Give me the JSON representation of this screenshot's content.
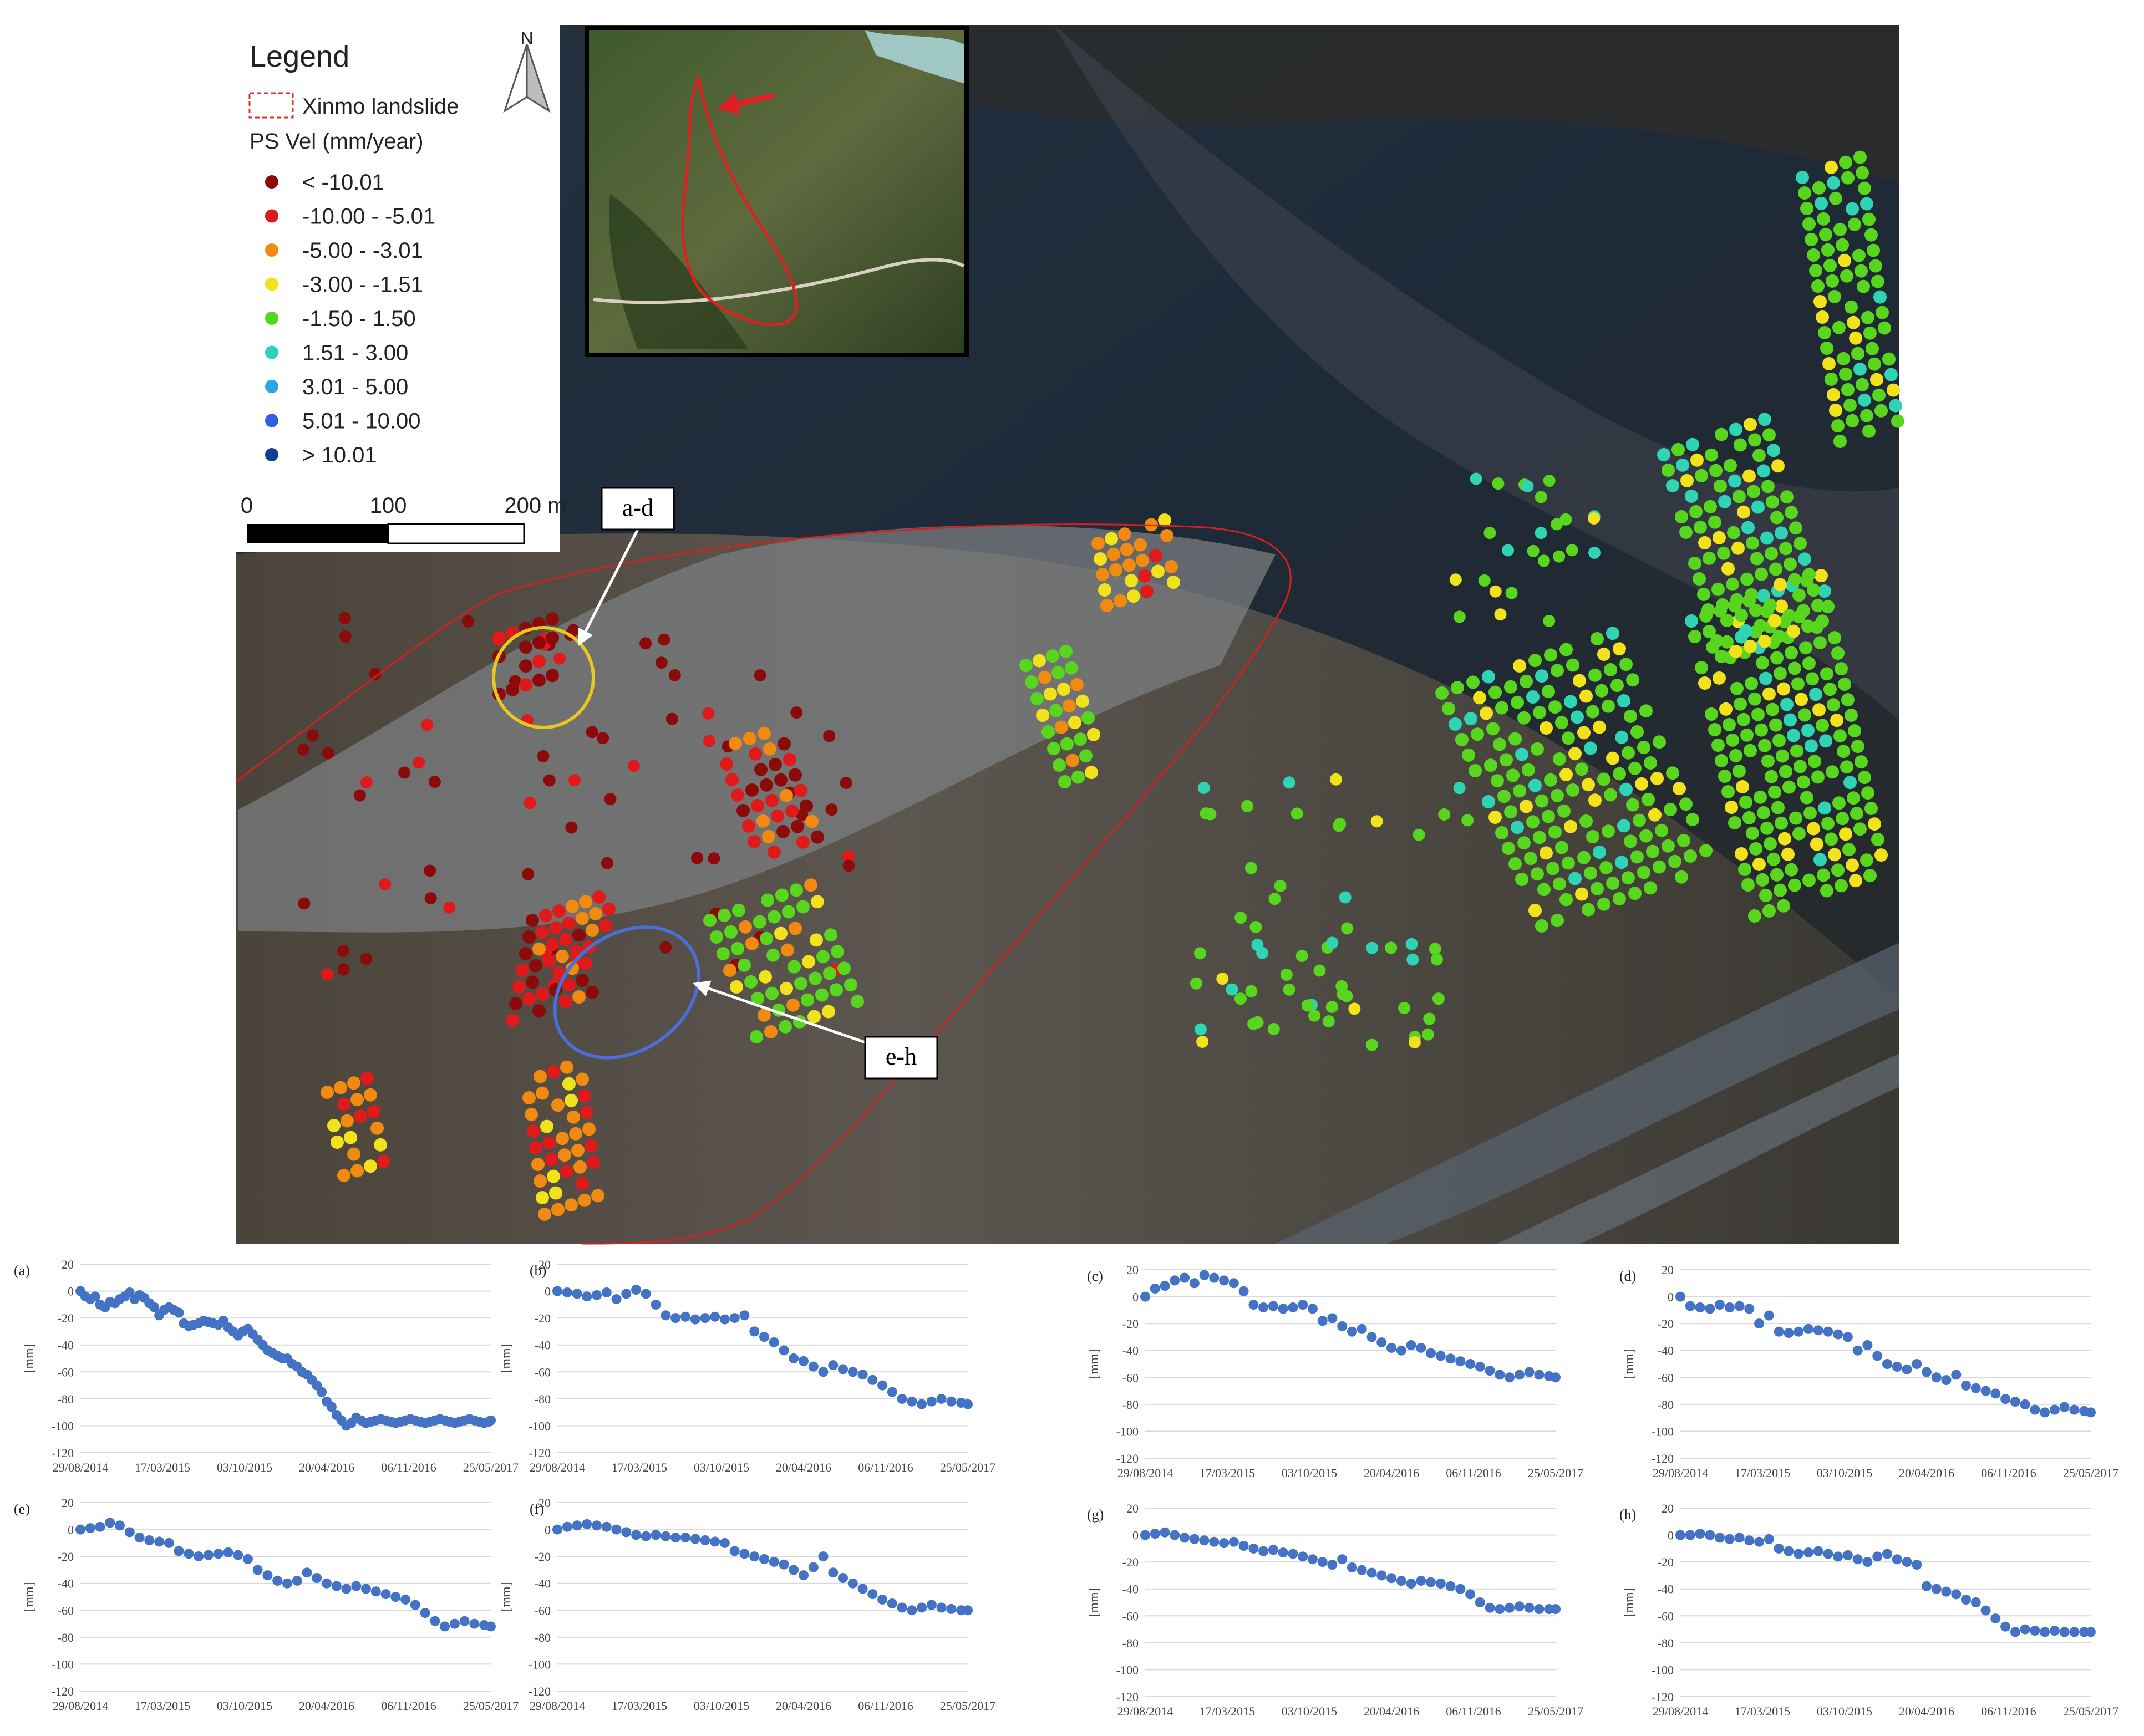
{
  "legend": {
    "title": "Legend",
    "landslide_label": "Xinmo landslide",
    "ps_title": "PS Vel (mm/year)",
    "classes": [
      {
        "label": "< -10.01",
        "color": "#8b0a0a"
      },
      {
        "label": "-10.00 - -5.01",
        "color": "#e01a1a"
      },
      {
        "label": "-5.00 - -3.01",
        "color": "#f08a10"
      },
      {
        "label": "-3.00 - -1.51",
        "color": "#f2e21c"
      },
      {
        "label": "-1.50 - 1.50",
        "color": "#58d61e"
      },
      {
        "label": "1.51 - 3.00",
        "color": "#2fd4b4"
      },
      {
        "label": "3.01 - 5.00",
        "color": "#2aa6e0"
      },
      {
        "label": "5.01 - 10.00",
        "color": "#2f5fe0"
      },
      {
        "label": "> 10.01",
        "color": "#103f8e"
      }
    ]
  },
  "north_label": "N",
  "scale_bar": {
    "ticks": [
      "0",
      "100",
      "200 m"
    ]
  },
  "callouts": {
    "ad": "a-d",
    "eh": "e-h"
  },
  "colors": {
    "landslide_outline": "#d42020",
    "ad_circle": "#e6c81e",
    "eh_ellipse": "#4a6fd6",
    "series": "#4472c4",
    "gridline": "#d9d9d9"
  },
  "chart_data": [
    {
      "panel": "(a)",
      "type": "scatter",
      "ylabel": "[mm]",
      "ylim": [
        -120,
        20
      ],
      "yticks": [
        20,
        0,
        -20,
        -40,
        -60,
        -80,
        -100,
        -120
      ],
      "x_ticklabels": [
        "29/08/2014",
        "17/03/2015",
        "03/10/2015",
        "20/04/2016",
        "06/11/2016",
        "25/05/2017"
      ],
      "x_range": [
        "29/08/2014",
        "25/05/2017"
      ],
      "x": [
        0,
        12,
        24,
        36,
        48,
        60,
        72,
        84,
        96,
        108,
        120,
        132,
        144,
        156,
        168,
        180,
        192,
        204,
        216,
        228,
        240,
        252,
        264,
        276,
        288,
        300,
        312,
        324,
        336,
        348,
        360,
        372,
        384,
        396,
        408,
        420,
        432,
        444,
        456,
        468,
        480,
        492,
        504,
        516,
        528,
        540,
        552,
        564,
        576,
        588,
        600,
        612,
        624,
        636,
        648,
        660,
        672,
        684,
        696,
        708,
        720,
        732,
        744,
        756,
        768,
        780,
        792,
        804,
        816,
        828,
        840,
        852,
        864,
        876,
        888,
        900,
        912,
        924,
        936,
        948,
        960,
        972,
        984,
        996,
        1000
      ],
      "y": [
        0,
        -4,
        -6,
        -4,
        -10,
        -12,
        -8,
        -9,
        -6,
        -4,
        -1,
        -6,
        -3,
        -5,
        -9,
        -12,
        -18,
        -14,
        -12,
        -14,
        -16,
        -24,
        -26,
        -25,
        -24,
        -22,
        -23,
        -24,
        -25,
        -22,
        -27,
        -30,
        -33,
        -30,
        -28,
        -32,
        -36,
        -40,
        -44,
        -46,
        -48,
        -50,
        -50,
        -54,
        -56,
        -60,
        -62,
        -66,
        -70,
        -75,
        -82,
        -86,
        -92,
        -96,
        -100,
        -98,
        -94,
        -96,
        -98,
        -97,
        -96,
        -95,
        -96,
        -97,
        -98,
        -97,
        -96,
        -95,
        -96,
        -97,
        -98,
        -97,
        -96,
        -95,
        -96,
        -97,
        -98,
        -97,
        -96,
        -95,
        -96,
        -97,
        -98,
        -97,
        -96
      ]
    },
    {
      "panel": "(b)",
      "type": "scatter",
      "ylabel": "[mm]",
      "ylim": [
        -120,
        20
      ],
      "yticks": [
        20,
        0,
        -20,
        -40,
        -60,
        -80,
        -100,
        -120
      ],
      "x_ticklabels": [
        "29/08/2014",
        "17/03/2015",
        "03/10/2015",
        "20/04/2016",
        "06/11/2016",
        "25/05/2017"
      ],
      "x_range": [
        "29/08/2014",
        "25/05/2017"
      ],
      "x": [
        0,
        24,
        48,
        72,
        96,
        120,
        144,
        168,
        192,
        216,
        240,
        264,
        288,
        312,
        336,
        360,
        384,
        408,
        432,
        456,
        480,
        504,
        528,
        552,
        576,
        600,
        624,
        648,
        672,
        696,
        720,
        744,
        768,
        792,
        816,
        840,
        864,
        888,
        912,
        936,
        960,
        984,
        1000
      ],
      "y": [
        0,
        -1,
        -2,
        -4,
        -3,
        -1,
        -6,
        -2,
        1,
        -2,
        -10,
        -18,
        -20,
        -19,
        -21,
        -20,
        -19,
        -21,
        -20,
        -18,
        -30,
        -34,
        -38,
        -44,
        -50,
        -52,
        -56,
        -60,
        -55,
        -58,
        -60,
        -62,
        -66,
        -70,
        -75,
        -80,
        -82,
        -84,
        -82,
        -80,
        -82,
        -83,
        -84
      ]
    },
    {
      "panel": "(c)",
      "type": "scatter",
      "ylabel": "[mm]",
      "ylim": [
        -120,
        20
      ],
      "yticks": [
        20,
        0,
        -20,
        -40,
        -60,
        -80,
        -100,
        -120
      ],
      "x_ticklabels": [
        "29/08/2014",
        "17/03/2015",
        "03/10/2015",
        "20/04/2016",
        "06/11/2016",
        "25/05/2017"
      ],
      "x_range": [
        "29/08/2014",
        "25/05/2017"
      ],
      "x": [
        0,
        24,
        48,
        72,
        96,
        120,
        144,
        168,
        192,
        216,
        240,
        264,
        288,
        312,
        336,
        360,
        384,
        408,
        432,
        456,
        480,
        504,
        528,
        552,
        576,
        600,
        624,
        648,
        672,
        696,
        720,
        744,
        768,
        792,
        816,
        840,
        864,
        888,
        912,
        936,
        960,
        984,
        1000
      ],
      "y": [
        0,
        6,
        8,
        12,
        14,
        10,
        16,
        14,
        12,
        10,
        4,
        -6,
        -8,
        -7,
        -9,
        -8,
        -6,
        -9,
        -18,
        -16,
        -22,
        -26,
        -24,
        -30,
        -34,
        -38,
        -40,
        -36,
        -38,
        -42,
        -44,
        -46,
        -48,
        -50,
        -52,
        -55,
        -58,
        -60,
        -58,
        -56,
        -58,
        -59,
        -60
      ]
    },
    {
      "panel": "(d)",
      "type": "scatter",
      "ylabel": "[mm]",
      "ylim": [
        -120,
        20
      ],
      "yticks": [
        20,
        0,
        -20,
        -40,
        -60,
        -80,
        -100,
        -120
      ],
      "x_ticklabels": [
        "29/08/2014",
        "17/03/2015",
        "03/10/2015",
        "20/04/2016",
        "06/11/2016",
        "25/05/2017"
      ],
      "x_range": [
        "29/08/2014",
        "25/05/2017"
      ],
      "x": [
        0,
        24,
        48,
        72,
        96,
        120,
        144,
        168,
        192,
        216,
        240,
        264,
        288,
        312,
        336,
        360,
        384,
        408,
        432,
        456,
        480,
        504,
        528,
        552,
        576,
        600,
        624,
        648,
        672,
        696,
        720,
        744,
        768,
        792,
        816,
        840,
        864,
        888,
        912,
        936,
        960,
        984,
        1000
      ],
      "y": [
        0,
        -7,
        -8,
        -9,
        -6,
        -8,
        -7,
        -9,
        -20,
        -14,
        -26,
        -27,
        -26,
        -24,
        -25,
        -26,
        -28,
        -30,
        -40,
        -36,
        -44,
        -50,
        -52,
        -54,
        -50,
        -56,
        -60,
        -62,
        -58,
        -66,
        -68,
        -70,
        -72,
        -76,
        -78,
        -80,
        -84,
        -86,
        -84,
        -82,
        -84,
        -85,
        -86
      ]
    },
    {
      "panel": "(e)",
      "type": "scatter",
      "ylabel": "[mm]",
      "ylim": [
        -120,
        20
      ],
      "yticks": [
        20,
        0,
        -20,
        -40,
        -60,
        -80,
        -100,
        -120
      ],
      "x_ticklabels": [
        "29/08/2014",
        "17/03/2015",
        "03/10/2015",
        "20/04/2016",
        "06/11/2016",
        "25/05/2017"
      ],
      "x_range": [
        "29/08/2014",
        "25/05/2017"
      ],
      "x": [
        0,
        24,
        48,
        72,
        96,
        120,
        144,
        168,
        192,
        216,
        240,
        264,
        288,
        312,
        336,
        360,
        384,
        408,
        432,
        456,
        480,
        504,
        528,
        552,
        576,
        600,
        624,
        648,
        672,
        696,
        720,
        744,
        768,
        792,
        816,
        840,
        864,
        888,
        912,
        936,
        960,
        984,
        1000
      ],
      "y": [
        0,
        1,
        2,
        5,
        3,
        -2,
        -6,
        -8,
        -9,
        -10,
        -16,
        -18,
        -20,
        -19,
        -18,
        -17,
        -19,
        -22,
        -30,
        -34,
        -38,
        -40,
        -38,
        -32,
        -36,
        -40,
        -42,
        -44,
        -42,
        -44,
        -46,
        -48,
        -50,
        -52,
        -56,
        -62,
        -68,
        -72,
        -70,
        -68,
        -70,
        -71,
        -72
      ]
    },
    {
      "panel": "(f)",
      "type": "scatter",
      "ylabel": "[mm]",
      "ylim": [
        -120,
        20
      ],
      "yticks": [
        20,
        0,
        -20,
        -40,
        -60,
        -80,
        -100,
        -120
      ],
      "x_ticklabels": [
        "29/08/2014",
        "17/03/2015",
        "03/10/2015",
        "20/04/2016",
        "06/11/2016",
        "25/05/2017"
      ],
      "x_range": [
        "29/08/2014",
        "25/05/2017"
      ],
      "x": [
        0,
        24,
        48,
        72,
        96,
        120,
        144,
        168,
        192,
        216,
        240,
        264,
        288,
        312,
        336,
        360,
        384,
        408,
        432,
        456,
        480,
        504,
        528,
        552,
        576,
        600,
        624,
        648,
        672,
        696,
        720,
        744,
        768,
        792,
        816,
        840,
        864,
        888,
        912,
        936,
        960,
        984,
        1000
      ],
      "y": [
        0,
        2,
        3,
        4,
        3,
        2,
        0,
        -2,
        -4,
        -5,
        -4,
        -5,
        -6,
        -6,
        -7,
        -8,
        -9,
        -10,
        -16,
        -18,
        -20,
        -22,
        -24,
        -26,
        -30,
        -34,
        -28,
        -20,
        -32,
        -36,
        -40,
        -44,
        -48,
        -52,
        -55,
        -58,
        -60,
        -58,
        -56,
        -58,
        -59,
        -60,
        -60
      ]
    },
    {
      "panel": "(g)",
      "type": "scatter",
      "ylabel": "[mm]",
      "ylim": [
        -120,
        20
      ],
      "yticks": [
        20,
        0,
        -20,
        -40,
        -60,
        -80,
        -100,
        -120
      ],
      "x_ticklabels": [
        "29/08/2014",
        "17/03/2015",
        "03/10/2015",
        "20/04/2016",
        "06/11/2016",
        "25/05/2017"
      ],
      "x_range": [
        "29/08/2014",
        "25/05/2017"
      ],
      "x": [
        0,
        24,
        48,
        72,
        96,
        120,
        144,
        168,
        192,
        216,
        240,
        264,
        288,
        312,
        336,
        360,
        384,
        408,
        432,
        456,
        480,
        504,
        528,
        552,
        576,
        600,
        624,
        648,
        672,
        696,
        720,
        744,
        768,
        792,
        816,
        840,
        864,
        888,
        912,
        936,
        960,
        984,
        1000
      ],
      "y": [
        0,
        1,
        2,
        0,
        -2,
        -3,
        -4,
        -5,
        -6,
        -5,
        -8,
        -10,
        -12,
        -11,
        -13,
        -14,
        -16,
        -18,
        -20,
        -22,
        -18,
        -24,
        -26,
        -28,
        -30,
        -32,
        -34,
        -36,
        -34,
        -35,
        -36,
        -38,
        -40,
        -44,
        -50,
        -54,
        -55,
        -54,
        -53,
        -54,
        -55,
        -55,
        -55
      ]
    },
    {
      "panel": "(h)",
      "type": "scatter",
      "ylabel": "[mm]",
      "ylim": [
        -120,
        20
      ],
      "yticks": [
        20,
        0,
        -20,
        -40,
        -60,
        -80,
        -100,
        -120
      ],
      "x_ticklabels": [
        "29/08/2014",
        "17/03/2015",
        "03/10/2015",
        "20/04/2016",
        "06/11/2016",
        "25/05/2017"
      ],
      "x_range": [
        "29/08/2014",
        "25/05/2017"
      ],
      "x": [
        0,
        24,
        48,
        72,
        96,
        120,
        144,
        168,
        192,
        216,
        240,
        264,
        288,
        312,
        336,
        360,
        384,
        408,
        432,
        456,
        480,
        504,
        528,
        552,
        576,
        600,
        624,
        648,
        672,
        696,
        720,
        744,
        768,
        792,
        816,
        840,
        864,
        888,
        912,
        936,
        960,
        984,
        1000
      ],
      "y": [
        0,
        0,
        1,
        0,
        -2,
        -3,
        -2,
        -4,
        -5,
        -3,
        -10,
        -12,
        -14,
        -13,
        -12,
        -14,
        -16,
        -15,
        -18,
        -20,
        -16,
        -14,
        -18,
        -20,
        -22,
        -38,
        -40,
        -42,
        -44,
        -48,
        -50,
        -56,
        -62,
        -68,
        -72,
        -70,
        -71,
        -72,
        -71,
        -72,
        -72,
        -72,
        -72
      ]
    }
  ]
}
